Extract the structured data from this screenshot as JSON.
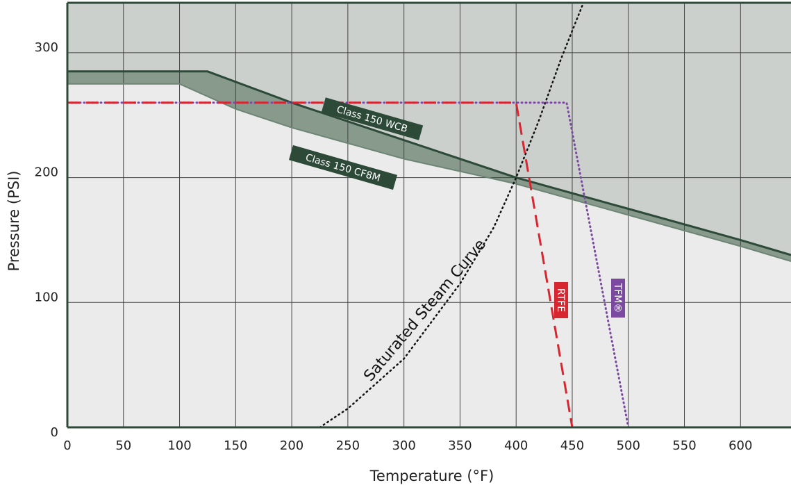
{
  "chart_data": {
    "type": "line",
    "xlabel": "Temperature (°F)",
    "ylabel": "Pressure (PSI)",
    "xlim": [
      0,
      645
    ],
    "ylim": [
      0,
      340
    ],
    "x_ticks": [
      0,
      50,
      100,
      150,
      200,
      250,
      300,
      350,
      400,
      450,
      500,
      550,
      600
    ],
    "y_ticks": [
      0,
      100,
      200,
      300
    ],
    "grid": true,
    "colors": {
      "plot_bg": "#eaebea",
      "upper_region": "#ccd0cd",
      "band_fill": "#879a8c",
      "band_dark": "#6e8576",
      "wcb_line": "#2d4a39",
      "frame": "#2d4a39",
      "label_bg": "#2d4a39",
      "rtfe": "#d7262f",
      "tfm": "#7b4aa0",
      "steam": "#111111"
    },
    "series": [
      {
        "name": "Class 150 WCB",
        "points": [
          [
            0,
            285
          ],
          [
            100,
            285
          ],
          [
            125,
            285
          ],
          [
            200,
            260
          ],
          [
            300,
            230
          ],
          [
            400,
            200
          ],
          [
            500,
            175
          ],
          [
            600,
            150
          ],
          [
            645,
            138
          ]
        ]
      },
      {
        "name": "Class 150 CF8M",
        "points": [
          [
            0,
            275
          ],
          [
            100,
            275
          ],
          [
            150,
            255
          ],
          [
            200,
            240
          ],
          [
            300,
            215
          ],
          [
            400,
            195
          ],
          [
            500,
            170
          ],
          [
            600,
            145
          ],
          [
            645,
            133
          ]
        ]
      },
      {
        "name": "RTFE",
        "points": [
          [
            0,
            260
          ],
          [
            400,
            260
          ],
          [
            450,
            0
          ]
        ]
      },
      {
        "name": "TFM®",
        "points": [
          [
            0,
            260
          ],
          [
            445,
            260
          ],
          [
            500,
            0
          ]
        ]
      },
      {
        "name": "Saturated Steam Curve",
        "points": [
          [
            225,
            0
          ],
          [
            250,
            15
          ],
          [
            300,
            55
          ],
          [
            350,
            115
          ],
          [
            380,
            160
          ],
          [
            400,
            200
          ],
          [
            420,
            245
          ],
          [
            440,
            295
          ],
          [
            460,
            340
          ]
        ]
      }
    ],
    "annotations": {
      "wcb_label": "Class 150 WCB",
      "cf8m_label": "Class 150 CF8M",
      "steam_label": "Saturated Steam Curve",
      "rtfe_label": "RTFE",
      "tfm_label": "TFM®"
    }
  }
}
